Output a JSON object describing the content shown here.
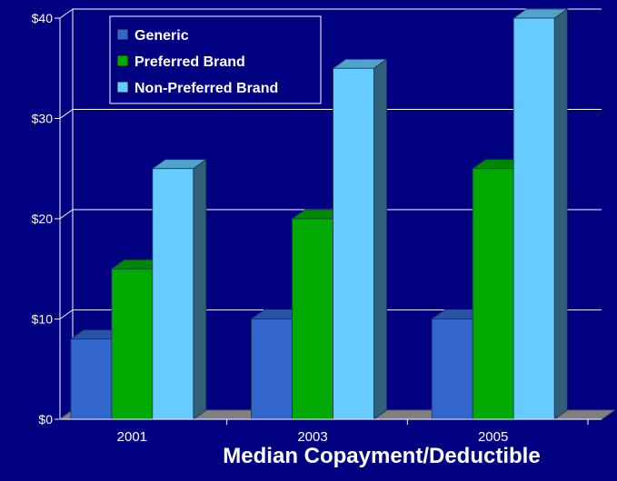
{
  "chart_data": {
    "type": "bar",
    "categories": [
      "2001",
      "2003",
      "2005"
    ],
    "series": [
      {
        "name": "Generic",
        "values": [
          8,
          10,
          10
        ]
      },
      {
        "name": "Preferred Brand",
        "values": [
          15,
          20,
          25
        ]
      },
      {
        "name": "Non-Preferred Brand",
        "values": [
          25,
          35,
          40
        ]
      }
    ],
    "ylim": [
      0,
      40
    ],
    "yticks": [
      0,
      10,
      20,
      30,
      40
    ],
    "ytick_labels": [
      "$0",
      "$10",
      "$20",
      "$30",
      "$40"
    ],
    "xlabel": "Median Copayment/Deductible",
    "ylabel": "",
    "legend": "top-left",
    "grid": true,
    "three_d": true,
    "colors": {
      "background": "#000080",
      "grid": "#ffffff",
      "floor": "#808080",
      "series": [
        "#3366cc",
        "#00aa00",
        "#66ccff"
      ]
    }
  }
}
